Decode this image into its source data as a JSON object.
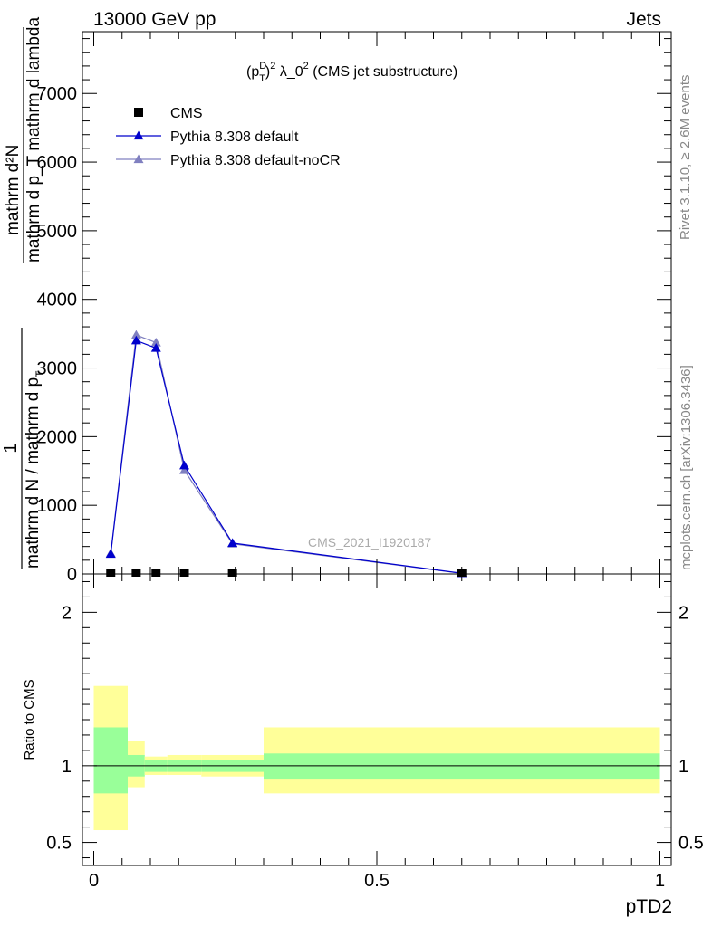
{
  "header": {
    "left": "13000 GeV pp",
    "right": "Jets"
  },
  "side": {
    "rivet": "Rivet 3.1.10, ≥ 2.6M events",
    "mcplots": "mcplots.cern.ch [arXiv:1306.3436]"
  },
  "main_title": {
    "a": "(p",
    "sup_d": "D",
    "sub_t": "T",
    "b": ")",
    "sup_2": "2",
    "c": " λ_0",
    "sup_2b": "2",
    "d": " (CMS jet substructure)"
  },
  "watermark": "CMS_2021_I1920187",
  "ylabel": {
    "num": "mathrm d²N",
    "den": "mathrm d p_T mathrm d lambda",
    "den_tail": "mathrm d p_T mathrm d lambda",
    "pre_num": "1",
    "pre_den": "mathrm d N / mathrm d p",
    "pre_sub": "T"
  },
  "chart_data": [
    {
      "type": "line",
      "panel": "main",
      "title": "(p_T^D)^2 λ_0^2 (CMS jet substructure)",
      "xlabel": "",
      "ylabel": "1 / (mathrm d N / mathrm d p_T) · mathrm d²N / (mathrm d p_T mathrm d lambda)",
      "xlim": [
        -0.02,
        1.02
      ],
      "ylim": [
        0,
        7900
      ],
      "yticks": [
        0,
        1000,
        2000,
        3000,
        4000,
        5000,
        6000,
        7000
      ],
      "yticklabels": [
        "0",
        "1000",
        "2000",
        "3000",
        "4000",
        "5000",
        "6000",
        "7000"
      ],
      "legend_position": "top-left",
      "series": [
        {
          "name": "CMS",
          "color": "#000000",
          "marker": "square",
          "x": [
            0.03,
            0.075,
            0.11,
            0.16,
            0.245,
            0.65
          ],
          "y": [
            3,
            3,
            3,
            3,
            3,
            1
          ]
        },
        {
          "name": "Pythia 8.308 default",
          "color": "#0000cc",
          "marker": "triangle",
          "x": [
            0.03,
            0.075,
            0.11,
            0.16,
            0.245,
            0.65
          ],
          "y": [
            290,
            3400,
            3290,
            1580,
            450,
            10
          ]
        },
        {
          "name": "Pythia 8.308 default-noCR",
          "color": "#8080c0",
          "marker": "triangle",
          "x": [
            0.03,
            0.075,
            0.11,
            0.16,
            0.245,
            0.65
          ],
          "y": [
            300,
            3480,
            3370,
            1510,
            440,
            8
          ]
        }
      ]
    },
    {
      "type": "area",
      "panel": "ratio",
      "xlabel": "pTD2",
      "ylabel": "Ratio to CMS",
      "xlim": [
        -0.02,
        1.02
      ],
      "ylim": [
        0.35,
        2.25
      ],
      "xticks": [
        0,
        0.5,
        1
      ],
      "xticklabels": [
        "0",
        "0.5",
        "1"
      ],
      "yticks": [
        0.5,
        1,
        2
      ],
      "yticklabels": [
        "0.5",
        "1",
        "2"
      ],
      "reference_line": 1,
      "bands": {
        "bin_edges": [
          0,
          0.06,
          0.09,
          0.13,
          0.19,
          0.3,
          1.0
        ],
        "inner_color": "#99ff99",
        "outer_color": "#ffff99",
        "inner_low": [
          0.82,
          0.93,
          0.96,
          0.96,
          0.96,
          0.91
        ],
        "inner_high": [
          1.25,
          1.07,
          1.04,
          1.04,
          1.04,
          1.08
        ],
        "outer_low": [
          0.58,
          0.86,
          0.94,
          0.94,
          0.93,
          0.82
        ],
        "outer_high": [
          1.52,
          1.16,
          1.06,
          1.07,
          1.07,
          1.25
        ]
      }
    }
  ]
}
